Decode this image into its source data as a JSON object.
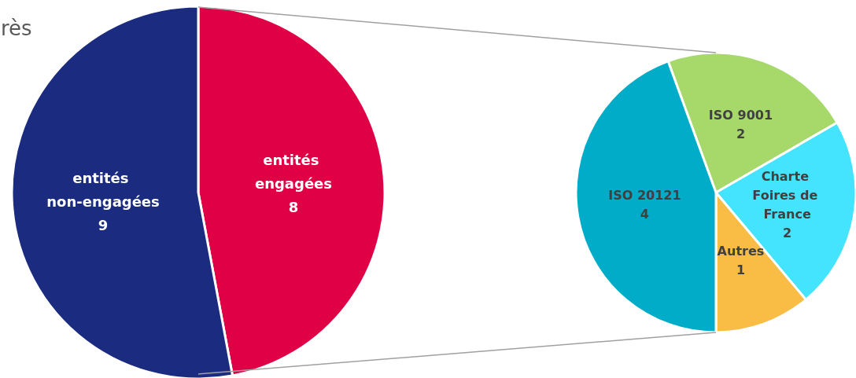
{
  "chart_data": [
    {
      "type": "pie",
      "title": "rès",
      "categories": [
        "entités engagées",
        "entités non-engagées"
      ],
      "values": [
        8,
        9
      ],
      "colors": [
        "#e00046",
        "#1a2b80"
      ],
      "data_labels": true,
      "legend": false
    },
    {
      "type": "pie",
      "categories": [
        "ISO 9001",
        "Charte Foires de France",
        "Autres",
        "ISO 20121"
      ],
      "values": [
        2,
        2,
        1,
        4
      ],
      "colors": [
        "#a6d86a",
        "#44e4ff",
        "#f9bd45",
        "#00acc8"
      ],
      "data_labels": true,
      "legend": false
    }
  ]
}
